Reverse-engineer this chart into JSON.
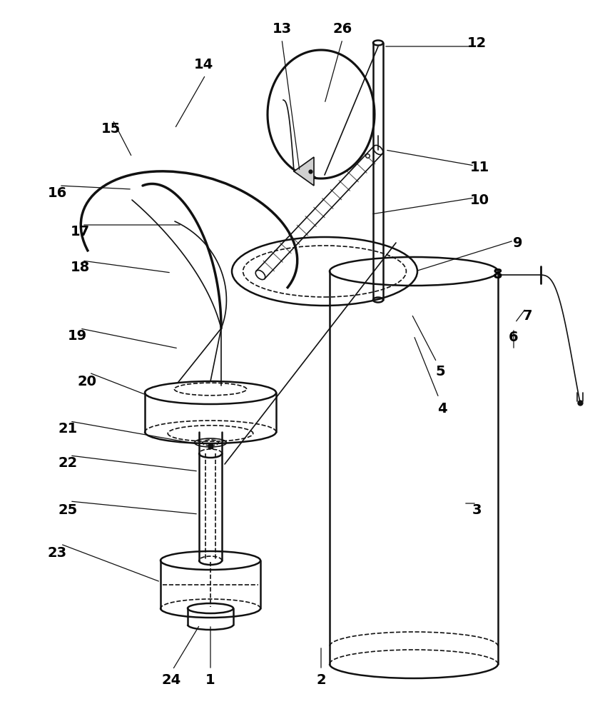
{
  "bg_color": "#ffffff",
  "line_color": "#111111",
  "label_color": "#000000",
  "label_fontsize": 14,
  "label_fontweight": "bold",
  "figsize": [
    8.27,
    10.0
  ],
  "dpi": 100
}
